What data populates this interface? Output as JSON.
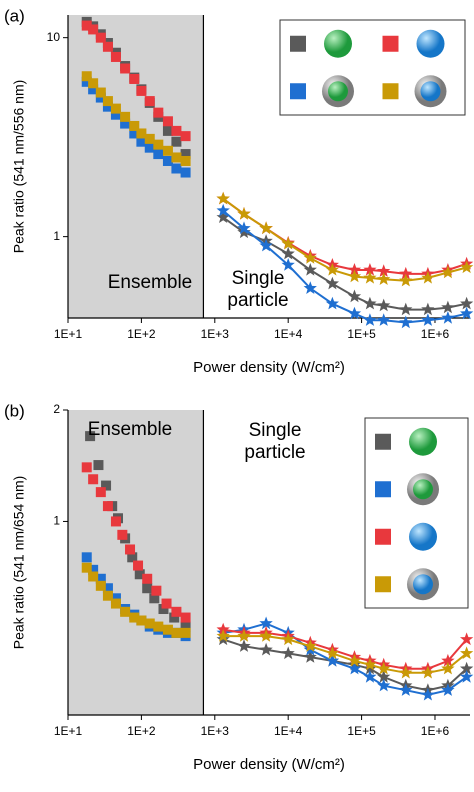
{
  "chart_data": [
    {
      "type": "scatter",
      "panel_label": "(a)",
      "xlabel": "Power density (W/cm²)",
      "ylabel": "Peak ratio (541 nm/556 nm)",
      "xscale": "log",
      "yscale": "log",
      "xlim": [
        10,
        3000000
      ],
      "ylim": [
        0.39,
        13
      ],
      "xticks": [
        {
          "value": 10,
          "label": "1E+1"
        },
        {
          "value": 100,
          "label": "1E+2"
        },
        {
          "value": 1000,
          "label": "1E+3"
        },
        {
          "value": 10000,
          "label": "1E+4"
        },
        {
          "value": 100000,
          "label": "1E+5"
        },
        {
          "value": 1000000,
          "label": "1E+6"
        }
      ],
      "yticks": [
        1,
        10
      ],
      "ensemble_region": [
        10,
        700
      ],
      "annotations": [
        "Ensemble",
        "Single particle"
      ],
      "legend": "upper right",
      "legend_columns": 2,
      "series": [
        {
          "color": "#5a5a5a",
          "marker": "square",
          "x": [
            18,
            22,
            28,
            35,
            45,
            60,
            80,
            100,
            130,
            170,
            230,
            300,
            400
          ],
          "values": [
            12,
            11.4,
            10.4,
            9.4,
            8.4,
            7.2,
            6.3,
            5.5,
            4.7,
            4.0,
            3.4,
            3.0,
            2.6
          ]
        },
        {
          "color": "#e8383d",
          "marker": "square",
          "x": [
            18,
            22,
            28,
            35,
            45,
            60,
            80,
            100,
            130,
            170,
            230,
            300,
            400
          ],
          "values": [
            11.5,
            11.0,
            10.0,
            9.0,
            8.0,
            7.0,
            6.2,
            5.4,
            4.8,
            4.2,
            3.8,
            3.4,
            3.2
          ]
        },
        {
          "color": "#1f6fd1",
          "marker": "square",
          "x": [
            18,
            22,
            28,
            35,
            45,
            60,
            80,
            100,
            130,
            170,
            230,
            300,
            400
          ],
          "values": [
            6.0,
            5.5,
            5.0,
            4.5,
            4.1,
            3.7,
            3.3,
            3.0,
            2.8,
            2.6,
            2.4,
            2.2,
            2.1
          ]
        },
        {
          "color": "#c99a06",
          "marker": "square",
          "x": [
            18,
            22,
            28,
            35,
            45,
            60,
            80,
            100,
            130,
            170,
            230,
            300,
            400
          ],
          "values": [
            6.4,
            5.9,
            5.3,
            4.8,
            4.4,
            4.0,
            3.6,
            3.3,
            3.1,
            2.9,
            2.7,
            2.5,
            2.4
          ]
        },
        {
          "color": "#5a5a5a",
          "marker": "star",
          "line": true,
          "x": [
            1300,
            2500,
            5000,
            10000,
            20000,
            40000,
            80000,
            130000,
            200000,
            400000,
            800000,
            1500000,
            2700000
          ],
          "values": [
            1.25,
            1.05,
            0.95,
            0.82,
            0.68,
            0.58,
            0.5,
            0.46,
            0.45,
            0.43,
            0.43,
            0.44,
            0.46
          ]
        },
        {
          "color": "#e8383d",
          "marker": "star",
          "line": true,
          "x": [
            1300,
            2500,
            5000,
            10000,
            20000,
            40000,
            80000,
            130000,
            200000,
            400000,
            800000,
            1500000,
            2700000
          ],
          "values": [
            1.55,
            1.3,
            1.1,
            0.93,
            0.8,
            0.72,
            0.68,
            0.68,
            0.67,
            0.65,
            0.65,
            0.68,
            0.73
          ]
        },
        {
          "color": "#1f6fd1",
          "marker": "star",
          "line": true,
          "x": [
            1300,
            2500,
            5000,
            10000,
            20000,
            40000,
            80000,
            130000,
            200000,
            400000,
            800000,
            1500000,
            2700000
          ],
          "values": [
            1.35,
            1.1,
            0.9,
            0.72,
            0.55,
            0.46,
            0.41,
            0.38,
            0.38,
            0.37,
            0.38,
            0.39,
            0.41
          ]
        },
        {
          "color": "#c99a06",
          "marker": "star",
          "line": true,
          "x": [
            1300,
            2500,
            5000,
            10000,
            20000,
            40000,
            80000,
            130000,
            200000,
            400000,
            800000,
            1500000,
            2700000
          ],
          "values": [
            1.55,
            1.3,
            1.1,
            0.92,
            0.78,
            0.68,
            0.63,
            0.62,
            0.61,
            0.6,
            0.62,
            0.66,
            0.7
          ]
        }
      ]
    },
    {
      "type": "scatter",
      "panel_label": "(b)",
      "xlabel": "Power density (W/cm²)",
      "ylabel": "Peak ratio (541 nm/654 nm)",
      "xscale": "log",
      "yscale": "log",
      "xlim": [
        10,
        3000000
      ],
      "ylim": [
        0.3,
        2
      ],
      "xticks": [
        {
          "value": 10,
          "label": "1E+1"
        },
        {
          "value": 100,
          "label": "1E+2"
        },
        {
          "value": 1000,
          "label": "1E+3"
        },
        {
          "value": 10000,
          "label": "1E+4"
        },
        {
          "value": 100000,
          "label": "1E+5"
        },
        {
          "value": 1000000,
          "label": "1E+6"
        }
      ],
      "yticks": [
        1,
        2
      ],
      "ensemble_region": [
        10,
        700
      ],
      "annotations": [
        "Ensemble",
        "Single particle"
      ],
      "legend": "upper right",
      "legend_columns": 1,
      "series": [
        {
          "color": "#5a5a5a",
          "marker": "square",
          "x": [
            20,
            26,
            33,
            40,
            48,
            60,
            75,
            95,
            120,
            150,
            200,
            280,
            400
          ],
          "values": [
            1.7,
            1.42,
            1.25,
            1.1,
            1.02,
            0.9,
            0.8,
            0.72,
            0.66,
            0.62,
            0.58,
            0.55,
            0.52
          ]
        },
        {
          "color": "#1f6fd1",
          "marker": "square",
          "x": [
            18,
            22,
            28,
            35,
            45,
            60,
            80,
            100,
            130,
            170,
            230,
            300,
            400
          ],
          "values": [
            0.8,
            0.74,
            0.7,
            0.66,
            0.62,
            0.58,
            0.56,
            0.54,
            0.52,
            0.51,
            0.5,
            0.5,
            0.49
          ]
        },
        {
          "color": "#e8383d",
          "marker": "square",
          "x": [
            18,
            22,
            28,
            35,
            45,
            55,
            70,
            90,
            120,
            160,
            220,
            300,
            400
          ],
          "values": [
            1.4,
            1.3,
            1.2,
            1.1,
            1.0,
            0.92,
            0.84,
            0.76,
            0.7,
            0.65,
            0.6,
            0.57,
            0.55
          ]
        },
        {
          "color": "#c99a06",
          "marker": "square",
          "x": [
            18,
            22,
            28,
            35,
            45,
            60,
            80,
            100,
            130,
            170,
            230,
            300,
            400
          ],
          "values": [
            0.75,
            0.71,
            0.67,
            0.63,
            0.6,
            0.57,
            0.55,
            0.54,
            0.53,
            0.52,
            0.51,
            0.5,
            0.5
          ]
        },
        {
          "color": "#5a5a5a",
          "marker": "star",
          "line": true,
          "x": [
            1300,
            2500,
            5000,
            10000,
            20000,
            40000,
            80000,
            130000,
            200000,
            400000,
            800000,
            1500000,
            2700000
          ],
          "values": [
            0.48,
            0.46,
            0.45,
            0.44,
            0.43,
            0.42,
            0.41,
            0.4,
            0.38,
            0.36,
            0.35,
            0.36,
            0.4
          ]
        },
        {
          "color": "#1f6fd1",
          "marker": "star",
          "line": true,
          "x": [
            1300,
            2500,
            5000,
            10000,
            20000,
            40000,
            80000,
            130000,
            200000,
            400000,
            800000,
            1500000,
            2700000
          ],
          "values": [
            0.5,
            0.51,
            0.53,
            0.5,
            0.45,
            0.42,
            0.4,
            0.38,
            0.36,
            0.35,
            0.34,
            0.35,
            0.38
          ]
        },
        {
          "color": "#e8383d",
          "marker": "star",
          "line": true,
          "x": [
            1300,
            2500,
            5000,
            10000,
            20000,
            40000,
            80000,
            130000,
            200000,
            400000,
            800000,
            1500000,
            2700000
          ],
          "values": [
            0.51,
            0.5,
            0.5,
            0.49,
            0.47,
            0.45,
            0.43,
            0.42,
            0.41,
            0.4,
            0.4,
            0.42,
            0.48
          ]
        },
        {
          "color": "#c99a06",
          "marker": "star",
          "line": true,
          "x": [
            1300,
            2500,
            5000,
            10000,
            20000,
            40000,
            80000,
            130000,
            200000,
            400000,
            800000,
            1500000,
            2700000
          ],
          "values": [
            0.49,
            0.49,
            0.49,
            0.48,
            0.46,
            0.44,
            0.42,
            0.41,
            0.4,
            0.39,
            0.39,
            0.4,
            0.44
          ]
        }
      ]
    }
  ]
}
